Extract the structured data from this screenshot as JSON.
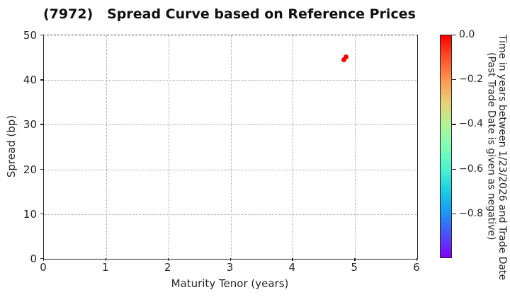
{
  "title": "(7972)   Spread Curve based on Reference Prices",
  "chart_data": {
    "type": "scatter",
    "title": "(7972)   Spread Curve based on Reference Prices",
    "xlabel": "Maturity Tenor (years)",
    "ylabel": "Spread (bp)",
    "xlim": [
      0,
      6
    ],
    "ylim": [
      0,
      50
    ],
    "xticks": [
      0,
      1,
      2,
      3,
      4,
      5,
      6
    ],
    "yticks": [
      0,
      10,
      20,
      30,
      40,
      50
    ],
    "grid": true,
    "grid_style": "dotted",
    "points": [
      {
        "x": 4.87,
        "y": 45.0,
        "trade_time": 0.0,
        "color": "#f20800"
      },
      {
        "x": 4.83,
        "y": 44.4,
        "trade_time": 0.0,
        "color": "#f20800"
      }
    ],
    "colorbar": {
      "label_line1": "Time in years between 1/23/2026 and Trade Date",
      "label_line2": "(Past Trade Date is given as negative)",
      "range_top": 0.0,
      "range_bottom": -1.0,
      "ticks": [
        {
          "label": "0.0",
          "value": 0.0
        },
        {
          "label": "−0.2",
          "value": -0.2
        },
        {
          "label": "−0.4",
          "value": -0.4
        },
        {
          "label": "−0.6",
          "value": -0.6
        },
        {
          "label": "−0.8",
          "value": -0.8
        }
      ],
      "colormap": "rainbow (0.0 = red at top, -1.0 = violet at bottom)",
      "gradient": [
        {
          "pos": 0.0,
          "color": "#ff0000"
        },
        {
          "pos": 0.1,
          "color": "#ff4f28"
        },
        {
          "pos": 0.2,
          "color": "#ff964f"
        },
        {
          "pos": 0.3,
          "color": "#e6cf74"
        },
        {
          "pos": 0.4,
          "color": "#b3f396"
        },
        {
          "pos": 0.5,
          "color": "#80ffb5"
        },
        {
          "pos": 0.6,
          "color": "#4df3ce"
        },
        {
          "pos": 0.7,
          "color": "#1acee3"
        },
        {
          "pos": 0.8,
          "color": "#1a96f3"
        },
        {
          "pos": 0.9,
          "color": "#4d4ffc"
        },
        {
          "pos": 1.0,
          "color": "#8000ff"
        }
      ]
    }
  }
}
